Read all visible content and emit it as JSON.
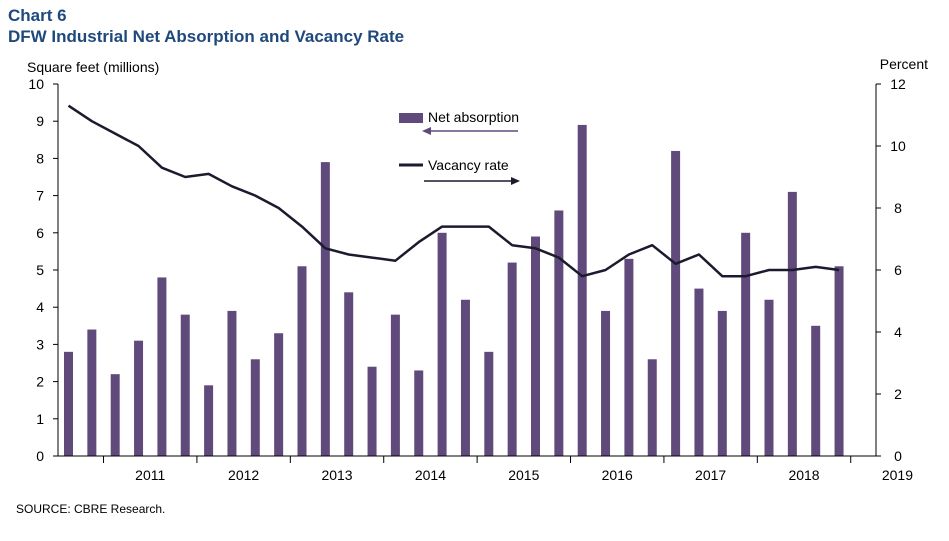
{
  "header": {
    "chart_number": "Chart 6",
    "title": "DFW Industrial Net Absorption and Vacancy Rate"
  },
  "footer": {
    "source": "SOURCE: CBRE Research."
  },
  "colors": {
    "bar": "#604a7b",
    "line": "#1c1a2e",
    "title": "#1f497d"
  },
  "chart_data": {
    "type": "bar+line",
    "title": "DFW Industrial Net Absorption and Vacancy Rate",
    "ylabel_left": "Square feet (millions)",
    "ylabel_right": "Percent",
    "ylim_left": [
      0,
      10
    ],
    "ylim_right": [
      0,
      12
    ],
    "yticks_left": [
      "0",
      "1",
      "2",
      "3",
      "4",
      "5",
      "6",
      "7",
      "8",
      "9",
      "10"
    ],
    "yticks_right": [
      "0",
      "2",
      "4",
      "6",
      "8",
      "10",
      "12"
    ],
    "x_year_labels": [
      "2011",
      "2012",
      "2013",
      "2014",
      "2015",
      "2016",
      "2017",
      "2018",
      "2019"
    ],
    "legend": [
      {
        "name": "Net absorption",
        "axis": "left",
        "arrow": "left"
      },
      {
        "name": "Vacancy rate",
        "axis": "right",
        "arrow": "right"
      }
    ],
    "quarters": [
      "2010Q3",
      "2010Q4",
      "2011Q1",
      "2011Q2",
      "2011Q3",
      "2011Q4",
      "2012Q1",
      "2012Q2",
      "2012Q3",
      "2012Q4",
      "2013Q1",
      "2013Q2",
      "2013Q3",
      "2013Q4",
      "2014Q1",
      "2014Q2",
      "2014Q3",
      "2014Q4",
      "2015Q1",
      "2015Q2",
      "2015Q3",
      "2015Q4",
      "2016Q1",
      "2016Q2",
      "2016Q3",
      "2016Q4",
      "2017Q1",
      "2017Q2",
      "2017Q3",
      "2017Q4",
      "2018Q1",
      "2018Q2",
      "2018Q3",
      "2018Q4"
    ],
    "series": [
      {
        "name": "Net absorption",
        "type": "bar",
        "axis": "left",
        "values": [
          2.8,
          3.4,
          2.2,
          3.1,
          4.8,
          3.8,
          1.9,
          3.9,
          2.6,
          3.3,
          5.1,
          7.9,
          4.4,
          2.4,
          3.8,
          2.3,
          6.0,
          4.2,
          2.8,
          5.2,
          5.9,
          6.6,
          8.9,
          3.9,
          5.3,
          2.6,
          8.2,
          4.5,
          3.9,
          6.0,
          4.2,
          7.1,
          3.5,
          5.1
        ]
      },
      {
        "name": "Vacancy rate",
        "type": "line",
        "axis": "right",
        "values": [
          11.3,
          10.8,
          10.4,
          10.0,
          9.3,
          9.0,
          9.1,
          8.7,
          8.4,
          8.0,
          7.4,
          6.7,
          6.5,
          6.4,
          6.3,
          6.9,
          7.4,
          7.4,
          7.4,
          6.8,
          6.7,
          6.4,
          5.8,
          6.0,
          6.5,
          6.8,
          6.2,
          6.5,
          5.8,
          5.8,
          6.0,
          6.0,
          6.1,
          6.0
        ]
      }
    ]
  }
}
